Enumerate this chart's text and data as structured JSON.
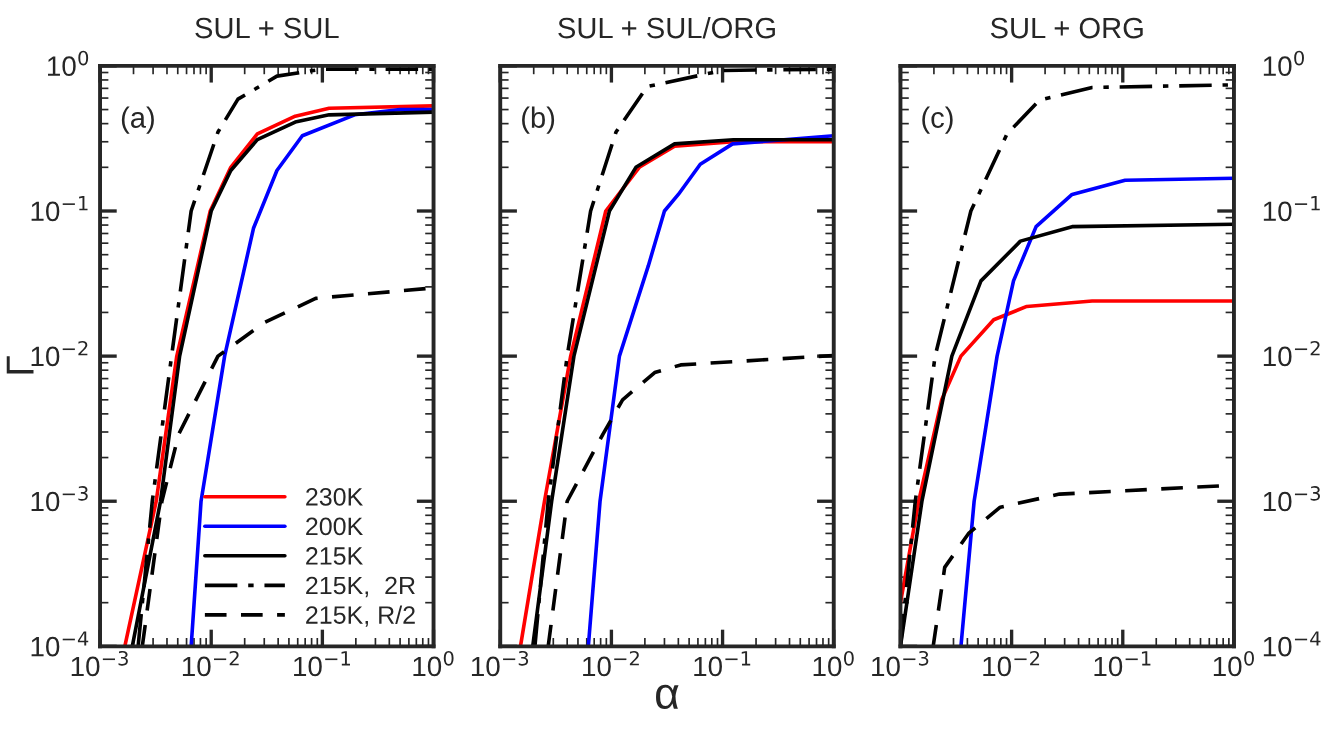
{
  "chart_data": [
    {
      "type": "line",
      "title": "SUL + SUL",
      "ylabel": "Γ",
      "annotations": [
        "(a)"
      ],
      "log": "xy",
      "grid": false,
      "legend": "lower right",
      "xlim": [
        0.001,
        1
      ],
      "xticks": [
        {
          "value": 0.001,
          "label": "10$^{−3}$"
        },
        {
          "value": 0.01,
          "label": "10$^{−2}$"
        },
        {
          "value": 0.1,
          "label": "10$^{−1}$"
        },
        {
          "value": 1,
          "label": "10$^{0}$"
        }
      ],
      "ylim": [
        0.0001,
        1
      ],
      "yticks": [
        {
          "value": 0.0001,
          "label": "10$^{−4}$"
        },
        {
          "value": 0.001,
          "label": "10$^{−3}$"
        },
        {
          "value": 0.01,
          "label": "10$^{−2}$"
        },
        {
          "value": 0.1,
          "label": "10$^{−1}$"
        },
        {
          "value": 1,
          "label": "10$^{0}$"
        }
      ],
      "series": [
        {
          "name": "230K",
          "color": "#ff0000",
          "line_style": "solid",
          "x": [
            0.00167,
            0.0032,
            0.0049,
            0.0098,
            0.015,
            0.026,
            0.057,
            0.115,
            1
          ],
          "values": [
            0.0001,
            0.001,
            0.01,
            0.1,
            0.2,
            0.34,
            0.45,
            0.51,
            0.53
          ]
        },
        {
          "name": "200K",
          "color": "#0000ff",
          "line_style": "solid",
          "x": [
            0.0066,
            0.0081,
            0.0132,
            0.024,
            0.039,
            0.066,
            0.195,
            0.5,
            1
          ],
          "values": [
            0.0001,
            0.001,
            0.01,
            0.076,
            0.19,
            0.33,
            0.46,
            0.5,
            0.5
          ]
        },
        {
          "name": "215K",
          "color": "#000000",
          "line_style": "solid",
          "x": [
            0.00195,
            0.0035,
            0.0052,
            0.01,
            0.015,
            0.026,
            0.057,
            0.115,
            1
          ],
          "values": [
            0.0001,
            0.001,
            0.01,
            0.1,
            0.19,
            0.31,
            0.41,
            0.46,
            0.48
          ]
        },
        {
          "name": "215K,  2R",
          "color": "#000000",
          "line_style": "dashdot",
          "x": [
            0.0022,
            0.00295,
            0.0044,
            0.0066,
            0.0115,
            0.0174,
            0.039,
            0.1,
            1
          ],
          "values": [
            0.0001,
            0.001,
            0.01,
            0.1,
            0.35,
            0.59,
            0.85,
            0.95,
            0.95
          ]
        },
        {
          "name": "215K, R/2",
          "color": "#000000",
          "line_style": "dashed",
          "x": [
            0.0024,
            0.0036,
            0.0051,
            0.0115,
            0.03,
            0.087,
            1
          ],
          "values": [
            0.0001,
            0.001,
            0.0029,
            0.01,
            0.017,
            0.025,
            0.0295
          ]
        }
      ]
    },
    {
      "type": "line",
      "title": "SUL + SUL/ORG",
      "xlabel": "α",
      "annotations": [
        "(b)"
      ],
      "log": "xy",
      "grid": false,
      "tick_labels": "x",
      "xlim": [
        0.001,
        1
      ],
      "xticks": [
        {
          "value": 0.001,
          "label": "10$^{−3}$"
        },
        {
          "value": 0.01,
          "label": "10$^{−2}$"
        },
        {
          "value": 0.1,
          "label": "10$^{−1}$"
        },
        {
          "value": 1,
          "label": "10$^{0}$"
        }
      ],
      "ylim": [
        0.0001,
        1
      ],
      "yticks": [
        0.0001,
        0.001,
        0.01,
        0.1,
        1
      ],
      "series": [
        {
          "color": "#ff0000",
          "line_style": "solid",
          "x": [
            0.00152,
            0.0025,
            0.0043,
            0.0089,
            0.0178,
            0.037,
            0.125,
            1
          ],
          "values": [
            0.0001,
            0.001,
            0.01,
            0.1,
            0.2,
            0.28,
            0.3,
            0.3
          ]
        },
        {
          "color": "#0000ff",
          "line_style": "solid",
          "x": [
            0.0062,
            0.0079,
            0.0118,
            0.0215,
            0.03,
            0.04,
            0.063,
            0.123,
            1
          ],
          "values": [
            0.0001,
            0.001,
            0.01,
            0.042,
            0.1,
            0.13,
            0.21,
            0.29,
            0.33
          ]
        },
        {
          "color": "#000000",
          "line_style": "solid",
          "x": [
            0.00196,
            0.0029,
            0.0046,
            0.0096,
            0.0166,
            0.037,
            0.125,
            1
          ],
          "values": [
            0.0001,
            0.001,
            0.01,
            0.1,
            0.2,
            0.29,
            0.31,
            0.31
          ]
        },
        {
          "color": "#000000",
          "line_style": "dashdot",
          "x": [
            0.00205,
            0.0027,
            0.004,
            0.0065,
            0.011,
            0.021,
            0.1,
            1
          ],
          "values": [
            0.0001,
            0.001,
            0.01,
            0.1,
            0.35,
            0.72,
            0.93,
            0.95
          ]
        },
        {
          "color": "#000000",
          "line_style": "dashed",
          "x": [
            0.0027,
            0.004,
            0.0084,
            0.0126,
            0.0245,
            0.042,
            1
          ],
          "values": [
            0.0001,
            0.001,
            0.0029,
            0.005,
            0.0077,
            0.0087,
            0.0101
          ]
        }
      ]
    },
    {
      "type": "line",
      "title": "SUL + ORG",
      "annotations": [
        "(c)"
      ],
      "log": "xy",
      "grid": false,
      "xlim": [
        0.001,
        1
      ],
      "xticks": [
        {
          "value": 0.001,
          "label": "10$^{−3}$"
        },
        {
          "value": 0.01,
          "label": "10$^{−2}$"
        },
        {
          "value": 0.1,
          "label": "10$^{−1}$"
        },
        {
          "value": 1,
          "label": "10$^{0}$"
        }
      ],
      "ylim": [
        0.0001,
        1
      ],
      "yticks": [
        {
          "value": 0.0001,
          "label": "10$^{−4}$"
        },
        {
          "value": 0.001,
          "label": "10$^{−3}$"
        },
        {
          "value": 0.01,
          "label": "10$^{−2}$"
        },
        {
          "value": 0.1,
          "label": "10$^{−1}$"
        },
        {
          "value": 1,
          "label": "10$^{0}$"
        }
      ],
      "series": [
        {
          "color": "#ff0000",
          "line_style": "solid",
          "x": [
            0.001,
            0.00146,
            0.00235,
            0.0035,
            0.0069,
            0.0137,
            0.053,
            1
          ],
          "values": [
            0.0002,
            0.001,
            0.005,
            0.01,
            0.0178,
            0.022,
            0.024,
            0.024
          ]
        },
        {
          "color": "#0000ff",
          "line_style": "solid",
          "x": [
            0.0035,
            0.0046,
            0.0074,
            0.0104,
            0.0166,
            0.035,
            0.105,
            1
          ],
          "values": [
            0.0001,
            0.001,
            0.01,
            0.033,
            0.078,
            0.13,
            0.163,
            0.168
          ]
        },
        {
          "color": "#000000",
          "line_style": "solid",
          "x": [
            0.001,
            0.00156,
            0.0029,
            0.0053,
            0.012,
            0.035,
            1
          ],
          "values": [
            0.0001,
            0.001,
            0.01,
            0.033,
            0.062,
            0.078,
            0.081
          ]
        },
        {
          "color": "#000000",
          "line_style": "dashdot",
          "x": [
            0.001,
            0.00136,
            0.00205,
            0.0043,
            0.0091,
            0.0178,
            0.053,
            1
          ],
          "values": [
            0.0001,
            0.001,
            0.01,
            0.1,
            0.34,
            0.58,
            0.71,
            0.74
          ]
        },
        {
          "color": "#000000",
          "line_style": "dashed",
          "x": [
            0.00197,
            0.0025,
            0.0041,
            0.0079,
            0.027,
            1
          ],
          "values": [
            0.0001,
            0.00035,
            0.0006,
            0.00091,
            0.00112,
            0.00129
          ]
        }
      ]
    }
  ]
}
